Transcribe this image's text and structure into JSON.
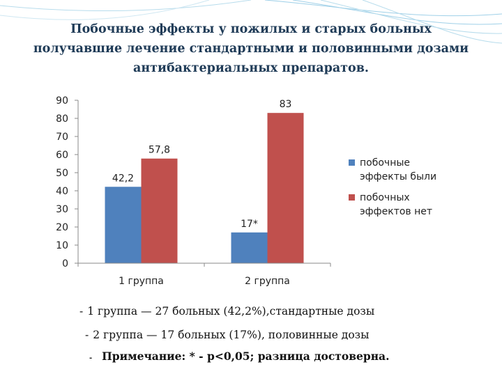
{
  "slide": {
    "title_lines": [
      "Побочные эффекты у пожилых и старых больных",
      "получавшие лечение стандартными и половинными дозами",
      "антибактериальных препаратов."
    ],
    "notes": [
      {
        "bullet": "-",
        "text": "1 группа — 27 больных (42,2%),стандартные дозы"
      },
      {
        "bullet": "-",
        "text": "2 группа — 17 больных (17%), половинные дозы"
      },
      {
        "bullet": "-",
        "text": "Примечание: * - p<0,05; разница достоверна."
      }
    ]
  },
  "chart_data": {
    "type": "bar",
    "categories": [
      "1 группа",
      "2 группа"
    ],
    "series": [
      {
        "name": "побочные эффекты были",
        "values": [
          42.2,
          17
        ],
        "labels": [
          "42,2",
          "17*"
        ],
        "color": "#4f81bd"
      },
      {
        "name": "побочных эффектов нет",
        "values": [
          57.8,
          83
        ],
        "labels": [
          "57,8",
          "83"
        ],
        "color": "#c0504d"
      }
    ],
    "y_ticks": [
      "0",
      "10",
      "20",
      "30",
      "40",
      "50",
      "60",
      "70",
      "80",
      "90"
    ],
    "ylim": [
      0,
      90
    ],
    "grid": false,
    "legend": "right",
    "title": "",
    "xlabel": "",
    "ylabel": ""
  }
}
